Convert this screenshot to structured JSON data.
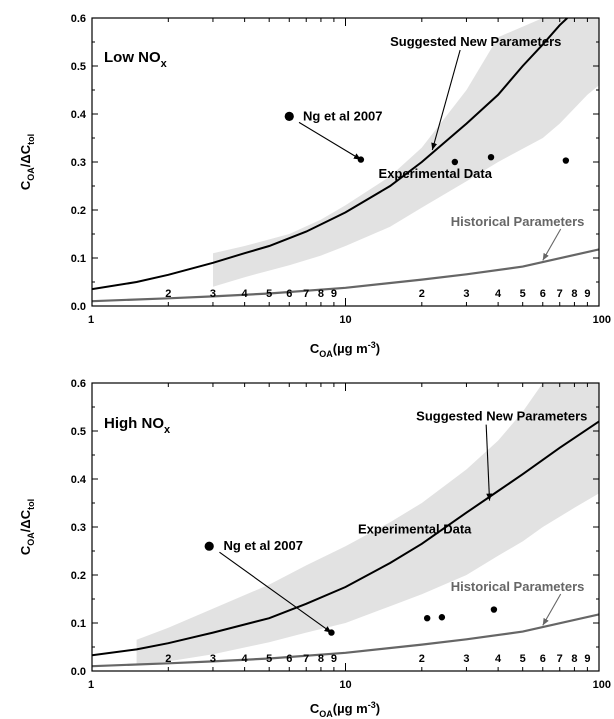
{
  "chart_data": [
    {
      "type": "line",
      "panel_label": "Low NO",
      "panel_label_sub": "x",
      "xlabel": "C",
      "xlabel_sub": "OA",
      "xlabel_unit": "(µg m",
      "xlabel_unit_sup": "-3",
      "xlabel_unit_end": ")",
      "ylabel": "C",
      "ylabel_sub1": "OA",
      "ylabel_mid": "/ΔC",
      "ylabel_sub2": "tol",
      "xscale": "log",
      "xlim": [
        1,
        100
      ],
      "ylim": [
        0,
        0.6
      ],
      "x_major_ticks": [
        1,
        10,
        100
      ],
      "x_major_tick_labels": [
        "1",
        "10",
        "100"
      ],
      "x_minor_ticks": [
        2,
        3,
        4,
        5,
        6,
        7,
        8,
        9,
        20,
        30,
        40,
        50,
        60,
        70,
        80,
        90
      ],
      "x_minor_tick_labels": [
        "2",
        "3",
        "4",
        "5",
        "6",
        "7",
        "8",
        "9",
        "2",
        "3",
        "4",
        "5",
        "6",
        "7",
        "8",
        "9"
      ],
      "y_ticks": [
        0.0,
        0.1,
        0.2,
        0.3,
        0.4,
        0.5,
        0.6
      ],
      "y_tick_labels": [
        "0.0",
        "0.1",
        "0.2",
        "0.3",
        "0.4",
        "0.5",
        "0.6"
      ],
      "grid": false,
      "colors": {
        "new_params": "#000000",
        "historical": "#666666",
        "band": "#e2e2e2",
        "points": "#000000"
      },
      "band": {
        "x": [
          3,
          4,
          6,
          8,
          10,
          15,
          20,
          30,
          40,
          60,
          70,
          90,
          100
        ],
        "upper": [
          0.11,
          0.125,
          0.15,
          0.18,
          0.21,
          0.27,
          0.33,
          0.45,
          0.56,
          0.6,
          0.6,
          0.6,
          0.6
        ],
        "lower": [
          0.04,
          0.06,
          0.085,
          0.105,
          0.125,
          0.165,
          0.205,
          0.26,
          0.3,
          0.35,
          0.38,
          0.44,
          0.46
        ]
      },
      "series": [
        {
          "name": "Suggested New Parameters",
          "x": [
            1,
            1.5,
            2,
            3,
            4,
            5,
            7,
            10,
            15,
            20,
            30,
            40,
            50,
            60,
            70,
            75
          ],
          "y": [
            0.035,
            0.05,
            0.065,
            0.09,
            0.11,
            0.125,
            0.155,
            0.195,
            0.25,
            0.3,
            0.38,
            0.44,
            0.5,
            0.545,
            0.585,
            0.6
          ]
        },
        {
          "name": "Historical Parameters",
          "x": [
            1,
            2,
            3,
            5,
            10,
            20,
            30,
            50,
            100
          ],
          "y": [
            0.01,
            0.016,
            0.02,
            0.026,
            0.038,
            0.055,
            0.066,
            0.082,
            0.118
          ]
        }
      ],
      "scatter": {
        "name": "Experimental Data",
        "x": [
          11.5,
          27,
          37.5,
          74
        ],
        "y": [
          0.305,
          0.3,
          0.31,
          0.303
        ]
      },
      "ng_marker": {
        "x": 6,
        "y": 0.395
      },
      "annotations": [
        {
          "text": "Suggested New Parameters",
          "tx": 15,
          "ty": 0.55,
          "ax": 22,
          "ay": 0.325
        },
        {
          "text": "Ng et al 2007",
          "tx": 6.8,
          "ty": 0.395,
          "ax": 11.5,
          "ay": 0.305
        },
        {
          "text": "Experimental Data",
          "tx": 13.5,
          "ty": 0.275,
          "ax": null,
          "ay": null
        },
        {
          "text": "Historical Parameters",
          "tx": 26,
          "ty": 0.175,
          "ax": 60,
          "ay": 0.095
        }
      ]
    },
    {
      "type": "line",
      "panel_label": "High NO",
      "panel_label_sub": "x",
      "xlabel": "C",
      "xlabel_sub": "OA",
      "xlabel_unit": "(µg m",
      "xlabel_unit_sup": "-3",
      "xlabel_unit_end": ")",
      "ylabel": "C",
      "ylabel_sub1": "OA",
      "ylabel_mid": "/ΔC",
      "ylabel_sub2": "tol",
      "xscale": "log",
      "xlim": [
        1,
        100
      ],
      "ylim": [
        0,
        0.6
      ],
      "x_major_ticks": [
        1,
        10,
        100
      ],
      "x_major_tick_labels": [
        "1",
        "10",
        "100"
      ],
      "x_minor_ticks": [
        2,
        3,
        4,
        5,
        6,
        7,
        8,
        9,
        20,
        30,
        40,
        50,
        60,
        70,
        80,
        90
      ],
      "x_minor_tick_labels": [
        "2",
        "3",
        "4",
        "5",
        "6",
        "7",
        "8",
        "9",
        "2",
        "3",
        "4",
        "5",
        "6",
        "7",
        "8",
        "9"
      ],
      "y_ticks": [
        0.0,
        0.1,
        0.2,
        0.3,
        0.4,
        0.5,
        0.6
      ],
      "y_tick_labels": [
        "0.0",
        "0.1",
        "0.2",
        "0.3",
        "0.4",
        "0.5",
        "0.6"
      ],
      "grid": false,
      "colors": {
        "new_params": "#000000",
        "historical": "#666666",
        "band": "#e2e2e2",
        "points": "#000000"
      },
      "band": {
        "x": [
          1.5,
          2,
          3,
          5,
          7,
          10,
          15,
          20,
          30,
          40,
          50,
          60,
          80,
          100
        ],
        "upper": [
          0.065,
          0.09,
          0.13,
          0.18,
          0.22,
          0.26,
          0.31,
          0.35,
          0.42,
          0.48,
          0.54,
          0.6,
          0.6,
          0.6
        ],
        "lower": [
          0.012,
          0.02,
          0.035,
          0.06,
          0.08,
          0.1,
          0.135,
          0.16,
          0.2,
          0.24,
          0.27,
          0.3,
          0.34,
          0.37
        ]
      },
      "series": [
        {
          "name": "Suggested New Parameters",
          "x": [
            1,
            1.5,
            2,
            3,
            5,
            7,
            10,
            15,
            20,
            30,
            40,
            50,
            70,
            100
          ],
          "y": [
            0.033,
            0.045,
            0.058,
            0.08,
            0.11,
            0.14,
            0.175,
            0.225,
            0.265,
            0.33,
            0.375,
            0.41,
            0.465,
            0.52
          ]
        },
        {
          "name": "Historical Parameters",
          "x": [
            1,
            2,
            3,
            5,
            10,
            20,
            30,
            50,
            100
          ],
          "y": [
            0.01,
            0.016,
            0.02,
            0.026,
            0.038,
            0.055,
            0.066,
            0.082,
            0.118
          ]
        }
      ],
      "scatter": {
        "name": "Experimental Data",
        "x": [
          8.8,
          21,
          24,
          38.5
        ],
        "y": [
          0.08,
          0.11,
          0.112,
          0.128
        ]
      },
      "ng_marker": {
        "x": 2.9,
        "y": 0.26
      },
      "annotations": [
        {
          "text": "Suggested New Parameters",
          "tx": 19,
          "ty": 0.53,
          "ax": 37,
          "ay": 0.355
        },
        {
          "text": "Ng et al 2007",
          "tx": 3.3,
          "ty": 0.26,
          "ax": 8.8,
          "ay": 0.08
        },
        {
          "text": "Experimental Data",
          "tx": 11.2,
          "ty": 0.295,
          "ax": null,
          "ay": null
        },
        {
          "text": "Historical Parameters",
          "tx": 26,
          "ty": 0.175,
          "ax": 60,
          "ay": 0.095
        }
      ]
    }
  ]
}
